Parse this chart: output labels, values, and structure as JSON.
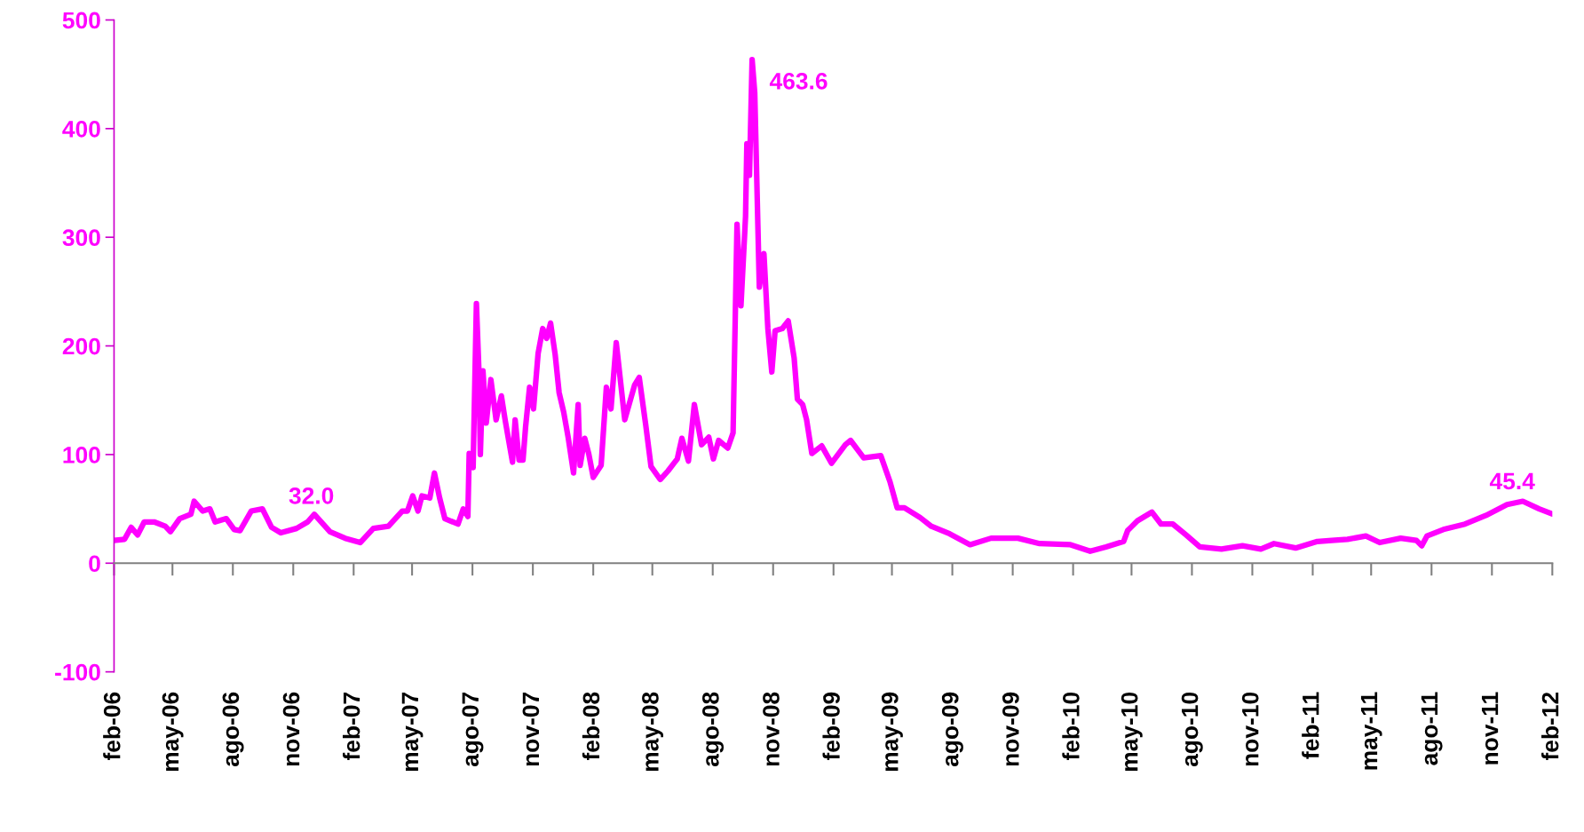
{
  "chart_data": {
    "type": "line",
    "x": [
      "2006-02-01",
      "2006-02-17",
      "2006-02-27",
      "2006-03-09",
      "2006-03-19",
      "2006-04-03",
      "2006-04-20",
      "2006-04-28",
      "2006-05-12",
      "2006-05-29",
      "2006-06-03",
      "2006-06-16",
      "2006-06-27",
      "2006-07-05",
      "2006-07-22",
      "2006-08-03",
      "2006-08-12",
      "2006-08-29",
      "2006-09-15",
      "2006-09-29",
      "2006-10-13",
      "2006-11-06",
      "2006-11-23",
      "2006-12-03",
      "2006-12-27",
      "2007-01-19",
      "2007-02-11",
      "2007-03-03",
      "2007-03-26",
      "2007-04-16",
      "2007-04-24",
      "2007-05-02",
      "2007-05-10",
      "2007-05-16",
      "2007-05-28",
      "2007-06-04",
      "2007-06-12",
      "2007-06-20",
      "2007-07-10",
      "2007-07-18",
      "2007-07-25",
      "2007-07-27",
      "2007-08-02",
      "2007-08-07",
      "2007-08-11",
      "2007-08-13",
      "2007-08-17",
      "2007-08-22",
      "2007-08-29",
      "2007-09-06",
      "2007-09-14",
      "2007-09-20",
      "2007-10-01",
      "2007-10-05",
      "2007-10-11",
      "2007-10-17",
      "2007-10-21",
      "2007-10-27",
      "2007-11-02",
      "2007-11-09",
      "2007-11-16",
      "2007-11-22",
      "2007-11-28",
      "2007-12-05",
      "2007-12-11",
      "2007-12-18",
      "2007-12-25",
      "2008-01-02",
      "2008-01-09",
      "2008-01-12",
      "2008-01-19",
      "2008-01-25",
      "2008-02-01",
      "2008-02-13",
      "2008-02-21",
      "2008-02-28",
      "2008-03-07",
      "2008-03-20",
      "2008-04-04",
      "2008-04-11",
      "2008-04-21",
      "2008-04-29",
      "2008-05-13",
      "2008-05-25",
      "2008-06-08",
      "2008-06-15",
      "2008-06-25",
      "2008-07-04",
      "2008-07-15",
      "2008-07-26",
      "2008-08-02",
      "2008-08-10",
      "2008-08-24",
      "2008-09-01",
      "2008-09-07",
      "2008-09-13",
      "2008-09-20",
      "2008-09-22",
      "2008-09-26",
      "2008-09-30",
      "2008-10-04",
      "2008-10-11",
      "2008-10-18",
      "2008-10-24",
      "2008-10-30",
      "2008-11-04",
      "2008-11-15",
      "2008-11-24",
      "2008-12-03",
      "2008-12-08",
      "2008-12-16",
      "2008-12-22",
      "2008-12-30",
      "2009-01-14",
      "2009-01-29",
      "2009-02-19",
      "2009-02-27",
      "2009-03-19",
      "2009-04-14",
      "2009-04-28",
      "2009-05-09",
      "2009-05-20",
      "2009-06-13",
      "2009-06-30",
      "2009-07-28",
      "2009-08-28",
      "2009-09-29",
      "2009-11-09",
      "2009-12-12",
      "2010-01-28",
      "2010-02-27",
      "2010-03-23",
      "2010-04-19",
      "2010-04-25",
      "2010-05-10",
      "2010-06-01",
      "2010-06-15",
      "2010-07-03",
      "2010-07-23",
      "2010-08-13",
      "2010-09-15",
      "2010-10-17",
      "2010-11-14",
      "2010-12-04",
      "2011-01-06",
      "2011-02-08",
      "2011-03-02",
      "2011-03-26",
      "2011-04-23",
      "2011-05-14",
      "2011-06-15",
      "2011-07-09",
      "2011-07-17",
      "2011-07-25",
      "2011-08-19",
      "2011-09-21",
      "2011-10-23",
      "2011-11-24",
      "2011-12-18",
      "2012-01-12",
      "2012-02-01"
    ],
    "series": [
      {
        "color": "#ff00ff",
        "values": [
          21,
          22,
          33,
          26,
          38,
          38,
          34,
          29,
          41,
          45,
          57,
          48,
          50,
          38,
          41,
          31,
          30,
          48,
          50,
          33,
          28,
          32.0,
          38,
          45,
          29,
          23,
          19,
          32,
          34,
          48,
          48,
          62,
          48,
          62,
          60,
          83,
          60,
          41,
          36,
          50,
          43,
          101,
          88,
          239,
          174,
          100,
          177,
          129,
          169,
          132,
          154,
          131,
          93,
          132,
          95,
          95,
          126,
          162,
          142,
          193,
          216,
          207,
          221,
          192,
          157,
          139,
          115,
          83,
          146,
          90,
          115,
          101,
          79,
          90,
          162,
          142,
          203,
          132,
          164,
          171,
          127,
          89,
          77,
          85,
          96,
          115,
          94,
          146,
          109,
          116,
          96,
          113,
          106,
          120,
          312,
          237,
          319,
          386,
          357,
          463.6,
          433,
          254,
          285,
          216,
          176,
          214,
          216,
          223,
          189,
          151,
          146,
          132,
          101,
          108,
          92,
          109,
          113,
          97,
          99,
          75,
          51,
          51,
          42,
          34,
          27,
          17,
          23,
          23,
          18,
          17,
          11,
          15,
          20,
          30,
          39,
          47,
          36,
          36,
          26,
          15,
          13,
          16,
          13,
          18,
          14,
          20,
          21,
          22,
          25,
          19,
          23,
          21,
          16,
          25,
          31,
          36,
          44,
          54,
          57,
          50,
          45.4
        ]
      }
    ],
    "xlim": [
      "2006-02-01",
      "2012-02-01"
    ],
    "xticks": [
      {
        "value": "2006-02-01",
        "label": "feb-06"
      },
      {
        "value": "2006-05-01",
        "label": "may-06"
      },
      {
        "value": "2006-08-01",
        "label": "ago-06"
      },
      {
        "value": "2006-11-01",
        "label": "nov-06"
      },
      {
        "value": "2007-02-01",
        "label": "feb-07"
      },
      {
        "value": "2007-05-01",
        "label": "may-07"
      },
      {
        "value": "2007-08-01",
        "label": "ago-07"
      },
      {
        "value": "2007-11-01",
        "label": "nov-07"
      },
      {
        "value": "2008-02-01",
        "label": "feb-08"
      },
      {
        "value": "2008-05-01",
        "label": "may-08"
      },
      {
        "value": "2008-08-01",
        "label": "ago-08"
      },
      {
        "value": "2008-11-01",
        "label": "nov-08"
      },
      {
        "value": "2009-02-01",
        "label": "feb-09"
      },
      {
        "value": "2009-05-01",
        "label": "may-09"
      },
      {
        "value": "2009-08-01",
        "label": "ago-09"
      },
      {
        "value": "2009-11-01",
        "label": "nov-09"
      },
      {
        "value": "2010-02-01",
        "label": "feb-10"
      },
      {
        "value": "2010-05-01",
        "label": "may-10"
      },
      {
        "value": "2010-08-01",
        "label": "ago-10"
      },
      {
        "value": "2010-11-01",
        "label": "nov-10"
      },
      {
        "value": "2011-02-01",
        "label": "feb-11"
      },
      {
        "value": "2011-05-01",
        "label": "may-11"
      },
      {
        "value": "2011-08-01",
        "label": "ago-11"
      },
      {
        "value": "2011-11-01",
        "label": "nov-11"
      },
      {
        "value": "2012-02-01",
        "label": "feb-12"
      }
    ],
    "ylim": [
      -100,
      500
    ],
    "yticks": [
      -100,
      0,
      100,
      200,
      300,
      400,
      500
    ],
    "annotations": [
      {
        "text": "32.0",
        "x": "2006-11-06",
        "y": 32.0
      },
      {
        "text": "463.6",
        "x": "2008-09-30",
        "y": 463.6
      },
      {
        "text": "45.4",
        "x": "2012-02-01",
        "y": 45.4
      }
    ],
    "marker": "none",
    "line_style": "solid"
  }
}
